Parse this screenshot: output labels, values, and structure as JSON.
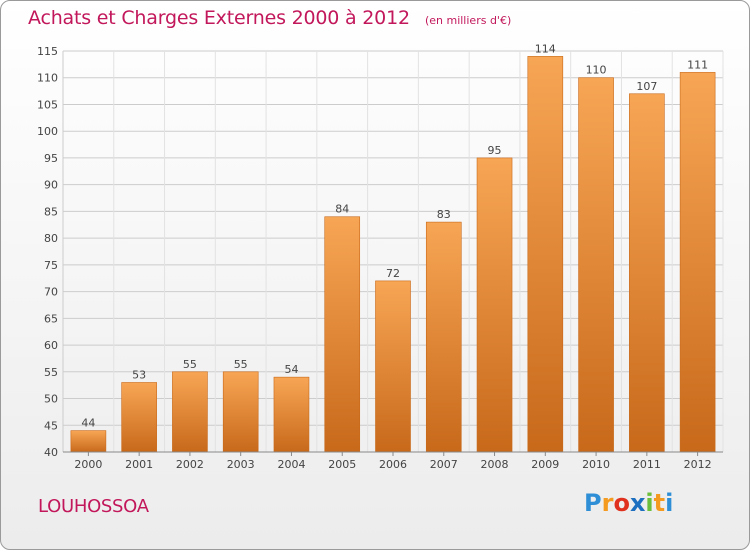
{
  "title": "Achats et Charges Externes 2000 à 2012",
  "subtitle": "(en milliers d'€)",
  "commune": "LOUHOSSOA",
  "brand": {
    "letters": [
      "P",
      "r",
      "o",
      "x",
      "i",
      "t",
      "i"
    ],
    "colors": [
      "#2f8fd6",
      "#f39a1f",
      "#e0311e",
      "#1d6fc0",
      "#6cbf3a",
      "#f39a1f",
      "#2f8fd6"
    ]
  },
  "colors": {
    "title": "#c2185b",
    "bar_top": "#f7a655",
    "bar_bottom": "#c8691a",
    "grid": "#cccccc"
  },
  "chart_data": {
    "type": "bar",
    "title": "Achats et Charges Externes 2000 à 2012",
    "subtitle": "(en milliers d'€)",
    "categories": [
      "2000",
      "2001",
      "2002",
      "2003",
      "2004",
      "2005",
      "2006",
      "2007",
      "2008",
      "2009",
      "2010",
      "2011",
      "2012"
    ],
    "values": [
      44,
      53,
      55,
      55,
      54,
      84,
      72,
      83,
      95,
      114,
      110,
      107,
      111
    ],
    "ylim": [
      40,
      115
    ],
    "yticks": [
      40,
      45,
      50,
      55,
      60,
      65,
      70,
      75,
      80,
      85,
      90,
      95,
      100,
      105,
      110,
      115
    ],
    "grid": true,
    "data_labels": true
  }
}
